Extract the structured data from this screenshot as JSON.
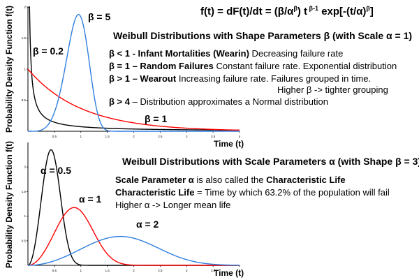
{
  "header": {
    "formula_prefix": "f(t) = dF(t)/dt = (β/α",
    "formula_sup1": "β",
    "formula_mid": ") t",
    "formula_sup2": " β-1",
    "formula_mid2": " exp[-(t/α)",
    "formula_sup3": "β",
    "formula_suffix": "]"
  },
  "top_panel": {
    "section_title": "Weibull Distributions with Shape Parameters β (with Scale α = 1)",
    "lines": [
      {
        "bold": "β < 1 - Infant Mortalities (Wearin)",
        "rest": " Decreasing failure rate"
      },
      {
        "bold": "β = 1 – Random Failures",
        "rest": " Constant failure rate. Exponential distribution"
      },
      {
        "bold": "β > 1 – Wearout",
        "rest": " Increasing failure rate. Failures grouped in time."
      },
      {
        "bold": "",
        "rest": "Higher β -> tighter grouping"
      },
      {
        "bold": "β > 4",
        "rest": " – Distribution approximates a Normal distribution"
      }
    ]
  },
  "bottom_panel": {
    "section_title": "Weibull Distributions with Scale Parameters α (with Shape β = 3)",
    "line1_bold_a": "Scale Parameter α",
    "line1_mid": " is also called the ",
    "line1_bold_b": "Characteristic Life",
    "line2_bold": "Characteristic Life",
    "line2_rest": " = Time by which 63.2% of the population will fail",
    "line3": "Higher α -> Longer mean life"
  },
  "chart_data": [
    {
      "type": "line",
      "title": "",
      "xlabel": "Time (t)",
      "ylabel": "Probability Density Function f(t)",
      "xlim": [
        0,
        4
      ],
      "ylim": [
        0,
        2
      ],
      "xticks": [
        "0.5",
        "1",
        "1.5",
        "2",
        "2.5",
        "3",
        "3.5",
        "4"
      ],
      "yticks": [
        "0.5",
        "1",
        "1.5",
        "2"
      ],
      "series": [
        {
          "name": "β = 0.2",
          "color": "#000000",
          "shape": 0.2,
          "scale": 1,
          "x": [
            0.02,
            0.05,
            0.1,
            0.2,
            0.5,
            1,
            2,
            3,
            4
          ],
          "y": [
            1.64,
            0.78,
            0.4,
            0.18,
            0.055,
            0.0736,
            0.0091,
            0.0037,
            0.0017
          ]
        },
        {
          "name": "β = 1",
          "color": "#ff0000",
          "shape": 1,
          "scale": 1,
          "x": [
            0,
            0.5,
            1,
            1.5,
            2,
            2.5,
            3,
            3.5,
            4
          ],
          "y": [
            1.0,
            0.607,
            0.368,
            0.223,
            0.135,
            0.082,
            0.05,
            0.03,
            0.018
          ]
        },
        {
          "name": "β = 5",
          "color": "#2f7fe0",
          "shape": 5,
          "scale": 1,
          "x": [
            0.25,
            0.5,
            0.75,
            0.9,
            0.96,
            1.0,
            1.1,
            1.25,
            1.5
          ],
          "y": [
            0.02,
            0.29,
            1.19,
            1.83,
            1.9,
            1.84,
            1.13,
            0.24,
            0.0001
          ]
        }
      ]
    },
    {
      "type": "line",
      "title": "",
      "xlabel": "Time (t)",
      "ylabel": "Probability Density Function f(t)",
      "xlim": [
        0,
        4
      ],
      "ylim": [
        0,
        2.5
      ],
      "xticks": [
        "0.5",
        "1",
        "1.5",
        "2",
        "2.5",
        "3",
        "3.5",
        "4"
      ],
      "yticks": [
        "0.5",
        "1",
        "1.5",
        "2"
      ],
      "series": [
        {
          "name": "α = 0.5",
          "color": "#000000",
          "shape": 3,
          "scale": 0.5,
          "x": [
            0,
            0.2,
            0.35,
            0.44,
            0.6,
            0.8,
            1.0
          ],
          "y": [
            0,
            0.94,
            2.09,
            2.4,
            1.03,
            0.06,
            0.0
          ]
        },
        {
          "name": "α = 1",
          "color": "#ff0000",
          "shape": 3,
          "scale": 1,
          "x": [
            0,
            0.4,
            0.7,
            0.87,
            1.0,
            1.5,
            2.0
          ],
          "y": [
            0,
            0.45,
            1.04,
            1.2,
            1.1,
            0.23,
            0.004
          ]
        },
        {
          "name": "α = 2",
          "color": "#2f7fe0",
          "shape": 3,
          "scale": 2,
          "x": [
            0,
            1.0,
            1.5,
            1.75,
            2.0,
            3.0,
            4.0
          ],
          "y": [
            0,
            0.33,
            0.55,
            0.6,
            0.55,
            0.12,
            0.002
          ]
        }
      ]
    }
  ]
}
